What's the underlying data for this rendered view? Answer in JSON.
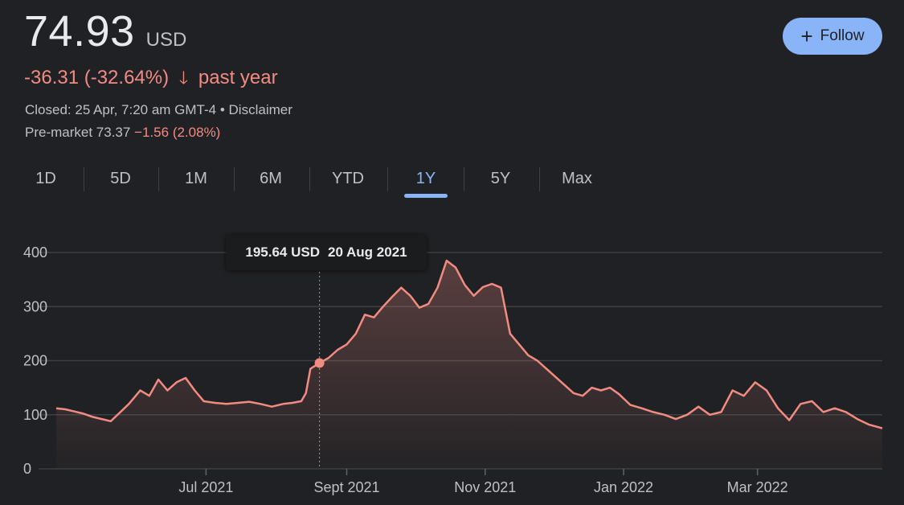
{
  "quote": {
    "price": "74.93",
    "currency": "USD",
    "change": "-36.31 (-32.64%)",
    "arrow_icon": "arrow-down-icon",
    "period": "past year",
    "closed_text": "Closed: 25 Apr, 7:20 am GMT-4 •",
    "disclaimer": "Disclaimer",
    "premarket_label": "Pre-market 73.37",
    "premarket_change": "−1.56 (2.08%)"
  },
  "follow_button": {
    "icon": "plus-icon",
    "label": "Follow",
    "color": "#8ab4f8"
  },
  "tabs": [
    {
      "label": "1D",
      "active": false
    },
    {
      "label": "5D",
      "active": false
    },
    {
      "label": "1M",
      "active": false
    },
    {
      "label": "6M",
      "active": false
    },
    {
      "label": "YTD",
      "active": false
    },
    {
      "label": "1Y",
      "active": true
    },
    {
      "label": "5Y",
      "active": false
    },
    {
      "label": "Max",
      "active": false
    }
  ],
  "tooltip": {
    "value": "195.64 USD",
    "date": "20 Aug 2021"
  },
  "colors": {
    "line": "#f28b82",
    "background": "#202124",
    "accent": "#8ab4f8",
    "grid": "#3c4043"
  },
  "chart_data": {
    "type": "area",
    "title": "",
    "xlabel": "",
    "ylabel": "",
    "ylim": [
      0,
      400
    ],
    "yticks": [
      0,
      100,
      200,
      300,
      400
    ],
    "xlim": [
      "2021-04-26",
      "2022-04-25"
    ],
    "xticks": [
      {
        "date": "2021-07-01",
        "label": "Jul 2021"
      },
      {
        "date": "2021-09-01",
        "label": "Sept 2021"
      },
      {
        "date": "2021-11-01",
        "label": "Nov 2021"
      },
      {
        "date": "2022-01-01",
        "label": "Jan 2022"
      },
      {
        "date": "2022-03-01",
        "label": "Mar 2022"
      }
    ],
    "grid": true,
    "highlight": {
      "date": "2021-08-20",
      "value": 195.64
    },
    "series": [
      {
        "points": [
          [
            "2021-04-26",
            112
          ],
          [
            "2021-04-30",
            110
          ],
          [
            "2021-05-04",
            106
          ],
          [
            "2021-05-08",
            102
          ],
          [
            "2021-05-12",
            96
          ],
          [
            "2021-05-16",
            92
          ],
          [
            "2021-05-20",
            88
          ],
          [
            "2021-05-24",
            104
          ],
          [
            "2021-05-28",
            120
          ],
          [
            "2021-06-02",
            145
          ],
          [
            "2021-06-06",
            135
          ],
          [
            "2021-06-10",
            165
          ],
          [
            "2021-06-14",
            145
          ],
          [
            "2021-06-18",
            160
          ],
          [
            "2021-06-22",
            168
          ],
          [
            "2021-06-26",
            145
          ],
          [
            "2021-06-30",
            125
          ],
          [
            "2021-07-05",
            122
          ],
          [
            "2021-07-10",
            120
          ],
          [
            "2021-07-15",
            122
          ],
          [
            "2021-07-20",
            124
          ],
          [
            "2021-07-25",
            120
          ],
          [
            "2021-07-30",
            115
          ],
          [
            "2021-08-04",
            120
          ],
          [
            "2021-08-08",
            122
          ],
          [
            "2021-08-12",
            125
          ],
          [
            "2021-08-14",
            140
          ],
          [
            "2021-08-16",
            185
          ],
          [
            "2021-08-20",
            195.64
          ],
          [
            "2021-08-24",
            205
          ],
          [
            "2021-08-28",
            220
          ],
          [
            "2021-09-01",
            230
          ],
          [
            "2021-09-05",
            250
          ],
          [
            "2021-09-09",
            285
          ],
          [
            "2021-09-13",
            280
          ],
          [
            "2021-09-17",
            300
          ],
          [
            "2021-09-21",
            318
          ],
          [
            "2021-09-25",
            335
          ],
          [
            "2021-09-29",
            320
          ],
          [
            "2021-10-03",
            298
          ],
          [
            "2021-10-07",
            305
          ],
          [
            "2021-10-11",
            335
          ],
          [
            "2021-10-15",
            385
          ],
          [
            "2021-10-19",
            372
          ],
          [
            "2021-10-23",
            340
          ],
          [
            "2021-10-27",
            320
          ],
          [
            "2021-10-31",
            336
          ],
          [
            "2021-11-04",
            342
          ],
          [
            "2021-11-08",
            335
          ],
          [
            "2021-11-12",
            250
          ],
          [
            "2021-11-16",
            230
          ],
          [
            "2021-11-20",
            210
          ],
          [
            "2021-11-24",
            200
          ],
          [
            "2021-11-28",
            185
          ],
          [
            "2021-12-02",
            170
          ],
          [
            "2021-12-06",
            155
          ],
          [
            "2021-12-10",
            140
          ],
          [
            "2021-12-14",
            135
          ],
          [
            "2021-12-18",
            150
          ],
          [
            "2021-12-22",
            145
          ],
          [
            "2021-12-26",
            150
          ],
          [
            "2021-12-30",
            138
          ],
          [
            "2022-01-04",
            118
          ],
          [
            "2022-01-09",
            112
          ],
          [
            "2022-01-14",
            105
          ],
          [
            "2022-01-19",
            100
          ],
          [
            "2022-01-24",
            92
          ],
          [
            "2022-01-29",
            100
          ],
          [
            "2022-02-03",
            115
          ],
          [
            "2022-02-08",
            100
          ],
          [
            "2022-02-13",
            105
          ],
          [
            "2022-02-18",
            145
          ],
          [
            "2022-02-23",
            135
          ],
          [
            "2022-02-28",
            160
          ],
          [
            "2022-03-05",
            145
          ],
          [
            "2022-03-10",
            112
          ],
          [
            "2022-03-15",
            90
          ],
          [
            "2022-03-20",
            120
          ],
          [
            "2022-03-25",
            125
          ],
          [
            "2022-03-30",
            105
          ],
          [
            "2022-04-04",
            112
          ],
          [
            "2022-04-09",
            105
          ],
          [
            "2022-04-14",
            92
          ],
          [
            "2022-04-19",
            82
          ],
          [
            "2022-04-25",
            74.93
          ]
        ]
      }
    ]
  }
}
